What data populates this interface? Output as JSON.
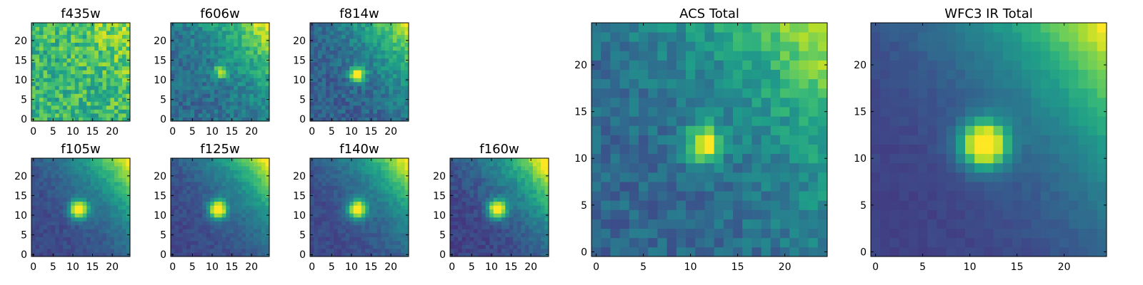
{
  "chart_data": [
    {
      "type": "heatmap",
      "title": "f435w",
      "grid": false,
      "colormap": "viridis",
      "xlim": [
        0,
        25
      ],
      "ylim": [
        0,
        25
      ],
      "x_ticks": [
        0,
        5,
        10,
        15,
        20
      ],
      "y_ticks": [
        0,
        5,
        10,
        15,
        20
      ],
      "bright_source": {
        "x": 12.5,
        "y": 12.5,
        "sigma": 1.5,
        "amplitude": 0.0
      },
      "gradient": {
        "corner": "top-right",
        "amplitude": 0.25
      },
      "noise": 0.35,
      "baseline": 0.65
    },
    {
      "type": "heatmap",
      "title": "f606w",
      "grid": false,
      "colormap": "viridis",
      "xlim": [
        0,
        25
      ],
      "ylim": [
        0,
        25
      ],
      "x_ticks": [
        0,
        5,
        10,
        15,
        20
      ],
      "y_ticks": [
        0,
        5,
        10,
        15,
        20
      ],
      "bright_source": {
        "x": 12.5,
        "y": 12.5,
        "sigma": 1.2,
        "amplitude": 0.45
      },
      "gradient": {
        "corner": "top-right",
        "amplitude": 0.7
      },
      "noise": 0.22,
      "baseline": 0.35
    },
    {
      "type": "heatmap",
      "title": "f814w",
      "grid": false,
      "colormap": "viridis",
      "xlim": [
        0,
        25
      ],
      "ylim": [
        0,
        25
      ],
      "x_ticks": [
        0,
        5,
        10,
        15,
        20
      ],
      "y_ticks": [
        0,
        5,
        10,
        15,
        20
      ],
      "bright_source": {
        "x": 12.0,
        "y": 12.0,
        "sigma": 1.3,
        "amplitude": 0.8
      },
      "gradient": {
        "corner": "top-right",
        "amplitude": 0.7
      },
      "noise": 0.2,
      "baseline": 0.3
    },
    {
      "type": "heatmap",
      "title": "f105w",
      "grid": false,
      "colormap": "viridis",
      "xlim": [
        0,
        25
      ],
      "ylim": [
        0,
        25
      ],
      "x_ticks": [
        0,
        5,
        10,
        15,
        20
      ],
      "y_ticks": [
        0,
        5,
        10,
        15,
        20
      ],
      "bright_source": {
        "x": 12.0,
        "y": 12.0,
        "sigma": 1.6,
        "amplitude": 0.9
      },
      "gradient": {
        "corner": "top-right",
        "amplitude": 0.85
      },
      "noise": 0.1,
      "baseline": 0.22
    },
    {
      "type": "heatmap",
      "title": "f125w",
      "grid": false,
      "colormap": "viridis",
      "xlim": [
        0,
        25
      ],
      "ylim": [
        0,
        25
      ],
      "x_ticks": [
        0,
        5,
        10,
        15,
        20
      ],
      "y_ticks": [
        0,
        5,
        10,
        15,
        20
      ],
      "bright_source": {
        "x": 12.0,
        "y": 12.0,
        "sigma": 1.6,
        "amplitude": 0.9
      },
      "gradient": {
        "corner": "top-right",
        "amplitude": 0.85
      },
      "noise": 0.1,
      "baseline": 0.22
    },
    {
      "type": "heatmap",
      "title": "f140w",
      "grid": false,
      "colormap": "viridis",
      "xlim": [
        0,
        25
      ],
      "ylim": [
        0,
        25
      ],
      "x_ticks": [
        0,
        5,
        10,
        15,
        20
      ],
      "y_ticks": [
        0,
        5,
        10,
        15,
        20
      ],
      "bright_source": {
        "x": 12.0,
        "y": 12.0,
        "sigma": 1.6,
        "amplitude": 0.9
      },
      "gradient": {
        "corner": "top-right",
        "amplitude": 0.85
      },
      "noise": 0.1,
      "baseline": 0.22
    },
    {
      "type": "heatmap",
      "title": "f160w",
      "grid": false,
      "colormap": "viridis",
      "xlim": [
        0,
        25
      ],
      "ylim": [
        0,
        25
      ],
      "x_ticks": [
        0,
        5,
        10,
        15,
        20
      ],
      "y_ticks": [
        0,
        5,
        10,
        15,
        20
      ],
      "bright_source": {
        "x": 12.0,
        "y": 12.0,
        "sigma": 1.6,
        "amplitude": 0.9
      },
      "gradient": {
        "corner": "top-right",
        "amplitude": 0.95
      },
      "noise": 0.12,
      "baseline": 0.2
    },
    {
      "type": "heatmap",
      "title": "ACS Total",
      "grid": false,
      "colormap": "viridis",
      "xlim": [
        0,
        25
      ],
      "ylim": [
        0,
        25
      ],
      "x_ticks": [
        0,
        5,
        10,
        15,
        20
      ],
      "y_ticks": [
        0,
        5,
        10,
        15,
        20
      ],
      "bright_source": {
        "x": 12.0,
        "y": 12.0,
        "sigma": 1.3,
        "amplitude": 0.7
      },
      "gradient": {
        "corner": "top-right",
        "amplitude": 0.65
      },
      "noise": 0.2,
      "baseline": 0.33
    },
    {
      "type": "heatmap",
      "title": "WFC3 IR Total",
      "grid": false,
      "colormap": "viridis",
      "xlim": [
        0,
        25
      ],
      "ylim": [
        0,
        25
      ],
      "x_ticks": [
        0,
        5,
        10,
        15,
        20
      ],
      "y_ticks": [
        0,
        5,
        10,
        15,
        20
      ],
      "bright_source": {
        "x": 12.0,
        "y": 12.0,
        "sigma": 1.7,
        "amplitude": 0.95
      },
      "gradient": {
        "corner": "top-right",
        "amplitude": 0.85
      },
      "noise": 0.05,
      "baseline": 0.2
    }
  ],
  "colors": {
    "viridis_stops": [
      "#440154",
      "#482878",
      "#3e4989",
      "#31688e",
      "#26828e",
      "#1f9e89",
      "#35b779",
      "#6ece58",
      "#b5de2b",
      "#fde725"
    ],
    "frame": "#000000"
  }
}
